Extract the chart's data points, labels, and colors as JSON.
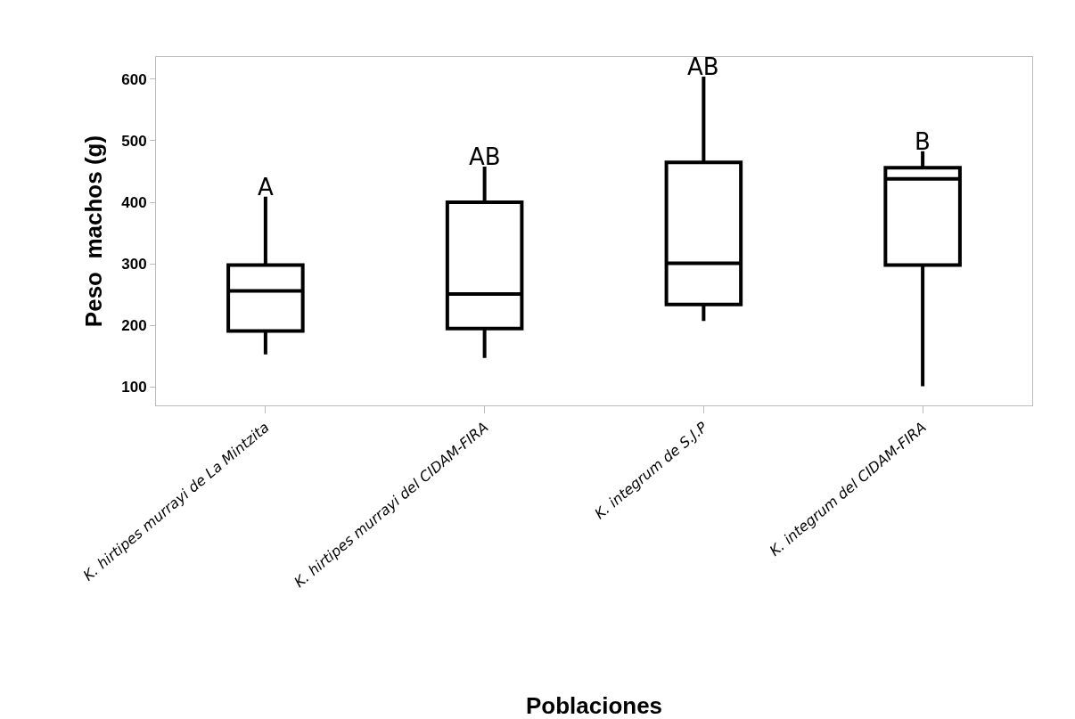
{
  "chart_data": {
    "type": "box",
    "xlabel": "Poblaciones",
    "ylabel": "Peso  machos (g)",
    "categories": [
      "K. hirtipes murrayi de La Mintzita",
      "K. hirtipes murrayi del CIDAM-FIRA",
      "K. integrum de S.J.P",
      "K. integrum del CIDAM-FIRA"
    ],
    "boxes": [
      {
        "low": 153,
        "q1": 191,
        "median": 256,
        "q3": 298,
        "high": 409
      },
      {
        "low": 147,
        "q1": 195,
        "median": 251,
        "q3": 400,
        "high": 458
      },
      {
        "low": 207,
        "q1": 234,
        "median": 301,
        "q3": 465,
        "high": 604
      },
      {
        "low": 101,
        "q1": 298,
        "median": 438,
        "q3": 456,
        "high": 483
      }
    ],
    "color": "#000000",
    "ylim": [
      70,
      636
    ],
    "yticks": [
      100,
      200,
      300,
      400,
      500,
      600
    ],
    "annotations": [
      {
        "text": "A",
        "x": "K. hirtipes murrayi de La Mintzita",
        "y": 409
      },
      {
        "text": "AB",
        "x": "K. hirtipes murrayi del CIDAM-FIRA",
        "y": 458
      },
      {
        "text": "AB",
        "x": "K. integrum de S.J.P",
        "y": 604
      },
      {
        "text": "B",
        "x": "K. integrum del CIDAM-FIRA",
        "y": 483
      }
    ]
  }
}
